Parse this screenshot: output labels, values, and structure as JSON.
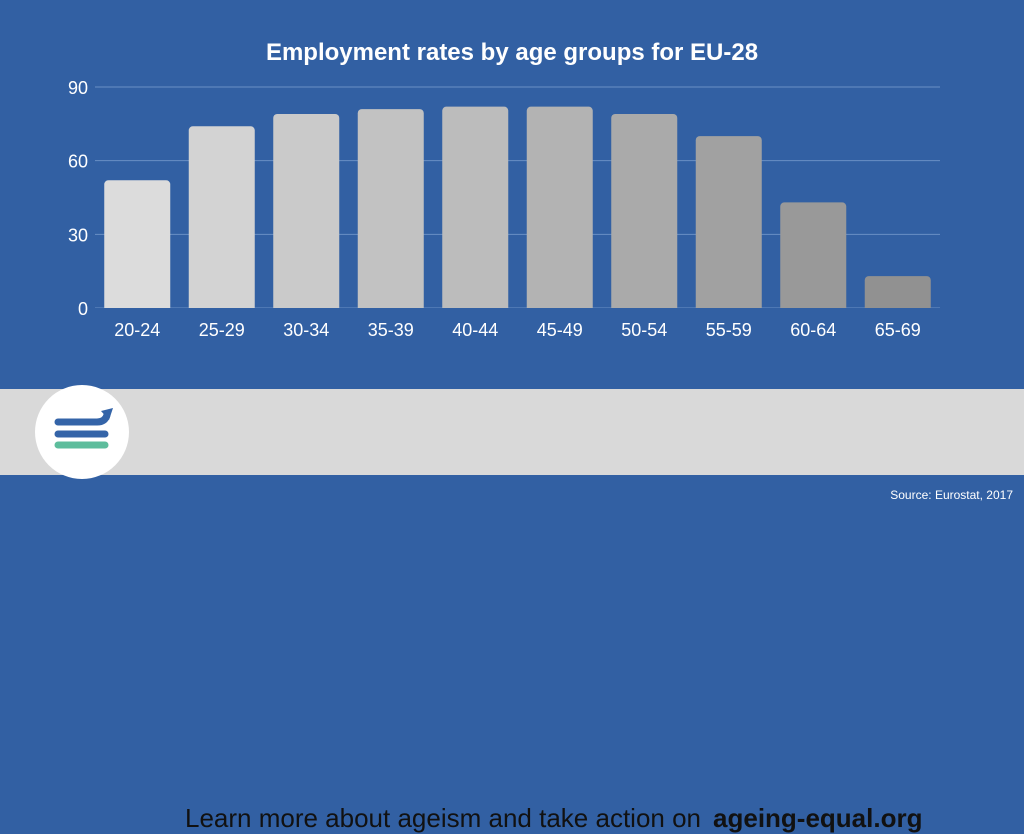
{
  "chart_data": {
    "type": "bar",
    "title": "Employment rates by age groups for EU-28",
    "categories": [
      "20-24",
      "25-29",
      "30-34",
      "35-39",
      "40-44",
      "45-49",
      "50-54",
      "55-59",
      "60-64",
      "65-69"
    ],
    "values": [
      52,
      74,
      79,
      81,
      82,
      82,
      79,
      70,
      43,
      13
    ],
    "ylim": [
      0,
      90
    ],
    "yticks": [
      0,
      30,
      60,
      90
    ],
    "grid": true,
    "bar_colors": [
      "#dcdcdc",
      "#d3d3d3",
      "#cacaca",
      "#c2c2c2",
      "#bcbcbc",
      "#b3b3b3",
      "#aaaaaa",
      "#a1a1a1",
      "#999999",
      "#919191"
    ]
  },
  "banner": {
    "text": "Learn more about ageism and take action on",
    "link": "ageing-equal.org",
    "logo_icon": "ageing-equal-logo-icon"
  },
  "footer": {
    "source": "Source: Eurostat, 2017"
  },
  "colors": {
    "background": "#3260a3",
    "banner": "#d9d9d9",
    "logo_blue": "#3464a8",
    "logo_green": "#5dbd9c"
  }
}
